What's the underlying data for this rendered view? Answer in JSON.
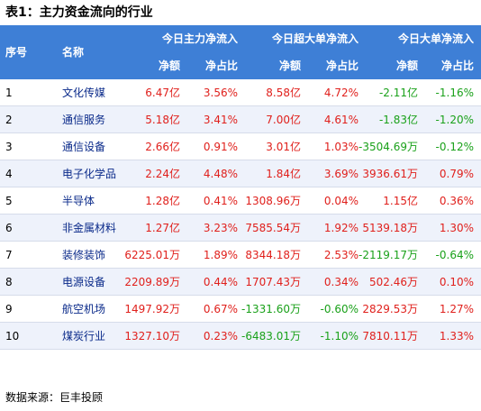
{
  "title": "表1：主力资金流向的行业",
  "header": {
    "index": "序号",
    "name": "名称",
    "groups": [
      "今日主力净流入",
      "今日超大单净流入",
      "今日大单净流入"
    ],
    "sub": [
      "净额",
      "净占比",
      "净额",
      "净占比",
      "净额",
      "净占比"
    ]
  },
  "rows": [
    {
      "index": "1",
      "name": "文化传媒",
      "v": [
        "6.47亿",
        "3.56%",
        "8.58亿",
        "4.72%",
        "-2.11亿",
        "-1.16%"
      ]
    },
    {
      "index": "2",
      "name": "通信服务",
      "v": [
        "5.18亿",
        "3.41%",
        "7.00亿",
        "4.61%",
        "-1.83亿",
        "-1.20%"
      ]
    },
    {
      "index": "3",
      "name": "通信设备",
      "v": [
        "2.66亿",
        "0.91%",
        "3.01亿",
        "1.03%",
        "-3504.69万",
        "-0.12%"
      ]
    },
    {
      "index": "4",
      "name": "电子化学品",
      "v": [
        "2.24亿",
        "4.48%",
        "1.84亿",
        "3.69%",
        "3936.61万",
        "0.79%"
      ]
    },
    {
      "index": "5",
      "name": "半导体",
      "v": [
        "1.28亿",
        "0.41%",
        "1308.96万",
        "0.04%",
        "1.15亿",
        "0.36%"
      ]
    },
    {
      "index": "6",
      "name": "非金属材料",
      "v": [
        "1.27亿",
        "3.23%",
        "7585.54万",
        "1.92%",
        "5139.18万",
        "1.30%"
      ]
    },
    {
      "index": "7",
      "name": "装修装饰",
      "v": [
        "6225.01万",
        "1.89%",
        "8344.18万",
        "2.53%",
        "-2119.17万",
        "-0.64%"
      ]
    },
    {
      "index": "8",
      "name": "电源设备",
      "v": [
        "2209.89万",
        "0.44%",
        "1707.43万",
        "0.34%",
        "502.46万",
        "0.10%"
      ]
    },
    {
      "index": "9",
      "name": "航空机场",
      "v": [
        "1497.92万",
        "0.67%",
        "-1331.60万",
        "-0.60%",
        "2829.53万",
        "1.27%"
      ]
    },
    {
      "index": "10",
      "name": "煤炭行业",
      "v": [
        "1327.10万",
        "0.23%",
        "-6483.01万",
        "-1.10%",
        "7810.11万",
        "1.33%"
      ]
    }
  ],
  "footer": "数据来源：巨丰投顾",
  "colors": {
    "header_bg": "#3e7fd6",
    "positive": "#e0201c",
    "negative": "#1aa11a",
    "alt_row": "#eef2fb"
  }
}
